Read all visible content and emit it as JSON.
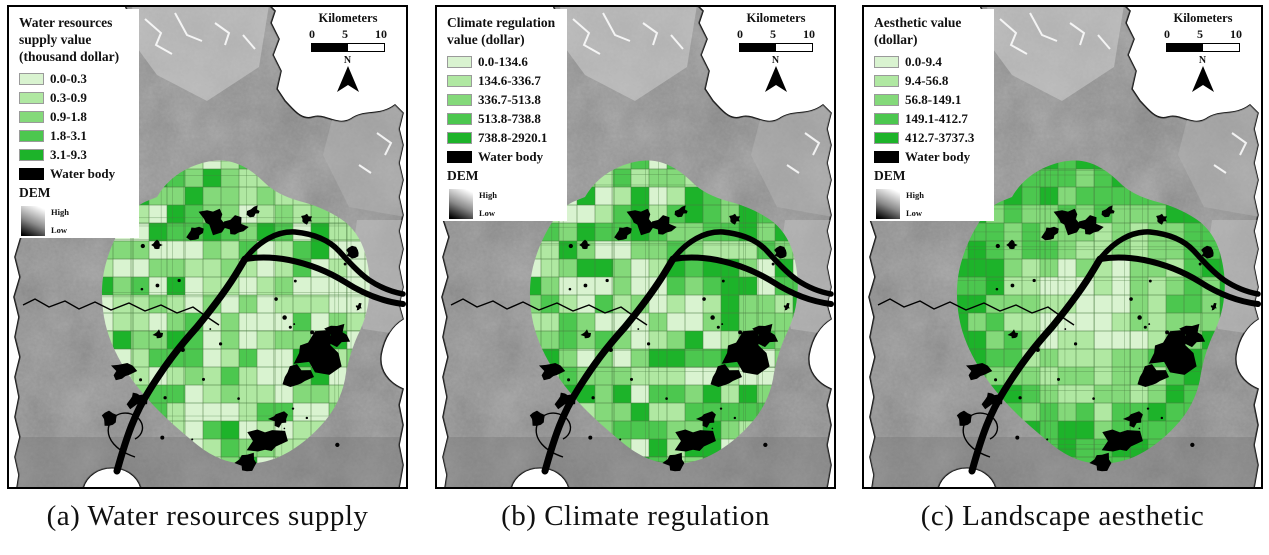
{
  "figure": {
    "panels": [
      {
        "id": "a",
        "caption": "(a) Water resources supply",
        "legend": {
          "title_lines": [
            "Water resources",
            "supply value",
            "(thousand dollar)"
          ],
          "classes": [
            {
              "label": "0.0-0.3",
              "color": "#d9f3d0"
            },
            {
              "label": "0.3-0.9",
              "color": "#b0e8a2"
            },
            {
              "label": "0.9-1.8",
              "color": "#84d97a"
            },
            {
              "label": "1.8-3.1",
              "color": "#4cc74f"
            },
            {
              "label": "3.1-9.3",
              "color": "#1db32a"
            }
          ],
          "water_body": {
            "label": "Water body",
            "color": "#000000"
          },
          "dem": {
            "label": "DEM",
            "high": "High",
            "low": "Low"
          }
        },
        "scalebar": {
          "title": "Kilometers",
          "ticks": [
            "0",
            "5",
            "10"
          ],
          "north": "N"
        }
      },
      {
        "id": "b",
        "caption": "(b) Climate regulation",
        "legend": {
          "title_lines": [
            "Climate regulation",
            "value (dollar)"
          ],
          "classes": [
            {
              "label": "0.0-134.6",
              "color": "#d9f3d0"
            },
            {
              "label": "134.6-336.7",
              "color": "#b0e8a2"
            },
            {
              "label": "336.7-513.8",
              "color": "#84d97a"
            },
            {
              "label": "513.8-738.8",
              "color": "#4cc74f"
            },
            {
              "label": "738.8-2920.1",
              "color": "#1db32a"
            }
          ],
          "water_body": {
            "label": "Water body",
            "color": "#000000"
          },
          "dem": {
            "label": "DEM",
            "high": "High",
            "low": "Low"
          }
        },
        "scalebar": {
          "title": "Kilometers",
          "ticks": [
            "0",
            "5",
            "10"
          ],
          "north": "N"
        }
      },
      {
        "id": "c",
        "caption": "(c) Landscape aesthetic",
        "legend": {
          "title_lines": [
            "Aesthetic value",
            "(dollar)"
          ],
          "classes": [
            {
              "label": "0.0-9.4",
              "color": "#d9f3d0"
            },
            {
              "label": "9.4-56.8",
              "color": "#b0e8a2"
            },
            {
              "label": "56.8-149.1",
              "color": "#84d97a"
            },
            {
              "label": "149.1-412.7",
              "color": "#4cc74f"
            },
            {
              "label": "412.7-3737.3",
              "color": "#1db32a"
            }
          ],
          "water_body": {
            "label": "Water body",
            "color": "#000000"
          },
          "dem": {
            "label": "DEM",
            "high": "High",
            "low": "Low"
          }
        },
        "scalebar": {
          "title": "Kilometers",
          "ticks": [
            "0",
            "5",
            "10"
          ],
          "north": "N"
        }
      }
    ],
    "map_style": {
      "background": "#ffffff",
      "terrain_gray": "#8e8e8e",
      "water": "#000000",
      "grid_line": "#4a7a42"
    }
  }
}
